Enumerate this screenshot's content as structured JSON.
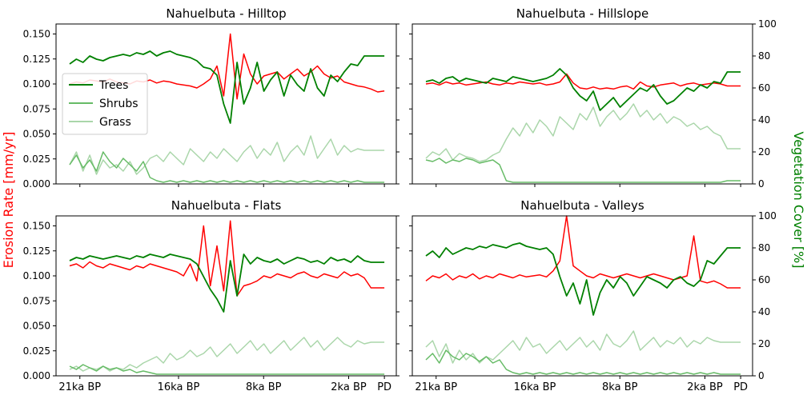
{
  "colors": {
    "erosion": "#ff0000",
    "trees": "#008000",
    "shrubs": "#66bb66",
    "grass": "#aad6aa"
  },
  "axis_labels": {
    "left": "Erosion Rate [mm/yr]",
    "right": "Vegetation Cover [%]"
  },
  "x_ticks": [
    "21ka BP",
    "16ka BP",
    "8ka BP",
    "2ka BP",
    "PD"
  ],
  "left_ticks": [
    "0.000",
    "0.025",
    "0.050",
    "0.075",
    "0.100",
    "0.125",
    "0.150"
  ],
  "right_ticks": [
    "0",
    "20",
    "40",
    "60",
    "80",
    "100"
  ],
  "legend": [
    "Trees",
    "Shrubs",
    "Grass"
  ],
  "chart_data": [
    {
      "type": "line",
      "title": "Nahuelbuta - Hilltop",
      "ylim_left": [
        0,
        0.16
      ],
      "ylim_right": [
        0,
        100
      ],
      "legend_position": "center-left",
      "series": [
        {
          "name": "",
          "axis": "left",
          "color": "#ff0000",
          "values": [
            0.1,
            0.102,
            0.101,
            0.104,
            0.103,
            0.102,
            0.105,
            0.102,
            0.101,
            0.1,
            0.103,
            0.102,
            0.104,
            0.101,
            0.103,
            0.102,
            0.1,
            0.099,
            0.098,
            0.096,
            0.1,
            0.105,
            0.118,
            0.088,
            0.15,
            0.085,
            0.13,
            0.11,
            0.1,
            0.108,
            0.11,
            0.112,
            0.105,
            0.11,
            0.115,
            0.108,
            0.112,
            0.118,
            0.11,
            0.106,
            0.108,
            0.102,
            0.1,
            0.098,
            0.097,
            0.095,
            0.092,
            0.093
          ]
        },
        {
          "name": "Trees",
          "axis": "right",
          "color": "#008000",
          "values": [
            75,
            78,
            76,
            80,
            78,
            77,
            79,
            80,
            81,
            80,
            82,
            81,
            83,
            80,
            82,
            83,
            81,
            80,
            79,
            77,
            73,
            72,
            68,
            50,
            38,
            76,
            50,
            60,
            76,
            58,
            65,
            70,
            55,
            68,
            62,
            58,
            72,
            60,
            55,
            68,
            64,
            70,
            75,
            74,
            80,
            80,
            80,
            80
          ]
        },
        {
          "name": "Shrubs",
          "axis": "right",
          "color": "#66bb66",
          "values": [
            12,
            18,
            10,
            15,
            8,
            20,
            14,
            10,
            16,
            12,
            8,
            14,
            4,
            2,
            1,
            2,
            1,
            2,
            1,
            2,
            1,
            2,
            1,
            2,
            1,
            2,
            1,
            2,
            1,
            2,
            1,
            2,
            1,
            2,
            1,
            2,
            1,
            2,
            1,
            2,
            1,
            2,
            1,
            2,
            1,
            1,
            1,
            1
          ]
        },
        {
          "name": "Grass",
          "axis": "right",
          "color": "#aad6aa",
          "values": [
            12,
            20,
            8,
            18,
            6,
            15,
            10,
            12,
            8,
            14,
            6,
            10,
            16,
            18,
            14,
            20,
            16,
            12,
            22,
            18,
            14,
            20,
            16,
            22,
            18,
            14,
            20,
            24,
            16,
            22,
            18,
            26,
            14,
            20,
            24,
            18,
            30,
            16,
            22,
            28,
            18,
            24,
            20,
            22,
            21,
            21,
            21,
            21
          ]
        }
      ]
    },
    {
      "type": "line",
      "title": "Nahuelbuta - Hillslope",
      "ylim_left": [
        0,
        0.16
      ],
      "ylim_right": [
        0,
        100
      ],
      "series": [
        {
          "name": "",
          "axis": "left",
          "color": "#ff0000",
          "values": [
            0.1,
            0.101,
            0.099,
            0.102,
            0.1,
            0.101,
            0.099,
            0.1,
            0.101,
            0.102,
            0.1,
            0.099,
            0.101,
            0.1,
            0.102,
            0.101,
            0.1,
            0.101,
            0.099,
            0.1,
            0.102,
            0.11,
            0.101,
            0.096,
            0.095,
            0.097,
            0.095,
            0.096,
            0.095,
            0.097,
            0.098,
            0.095,
            0.102,
            0.098,
            0.097,
            0.099,
            0.1,
            0.101,
            0.098,
            0.1,
            0.101,
            0.099,
            0.1,
            0.101,
            0.1,
            0.098,
            0.098,
            0.098
          ]
        },
        {
          "name": "",
          "axis": "right",
          "color": "#008000",
          "values": [
            64,
            65,
            63,
            66,
            67,
            64,
            66,
            65,
            64,
            63,
            66,
            65,
            64,
            67,
            66,
            65,
            64,
            65,
            66,
            68,
            72,
            68,
            60,
            55,
            52,
            58,
            46,
            50,
            54,
            48,
            52,
            56,
            60,
            58,
            62,
            55,
            50,
            52,
            56,
            60,
            58,
            62,
            60,
            64,
            63,
            70,
            70,
            70
          ]
        },
        {
          "name": "",
          "axis": "right",
          "color": "#66bb66",
          "values": [
            15,
            14,
            16,
            13,
            15,
            14,
            16,
            15,
            13,
            14,
            15,
            12,
            2,
            1,
            1,
            1,
            1,
            1,
            1,
            1,
            1,
            1,
            1,
            1,
            1,
            1,
            1,
            1,
            1,
            1,
            1,
            1,
            1,
            1,
            1,
            1,
            1,
            1,
            1,
            1,
            1,
            1,
            1,
            1,
            1,
            2,
            2,
            2
          ]
        },
        {
          "name": "",
          "axis": "right",
          "color": "#aad6aa",
          "values": [
            16,
            20,
            18,
            22,
            15,
            19,
            17,
            16,
            14,
            15,
            18,
            20,
            28,
            35,
            30,
            38,
            32,
            40,
            36,
            30,
            42,
            38,
            34,
            44,
            40,
            48,
            36,
            42,
            46,
            40,
            44,
            50,
            42,
            46,
            40,
            44,
            38,
            42,
            40,
            36,
            38,
            34,
            36,
            32,
            30,
            22,
            22,
            22
          ]
        }
      ]
    },
    {
      "type": "line",
      "title": "Nahuelbuta - Flats",
      "ylim_left": [
        0,
        0.16
      ],
      "ylim_right": [
        0,
        100
      ],
      "series": [
        {
          "name": "",
          "axis": "left",
          "color": "#ff0000",
          "values": [
            0.11,
            0.112,
            0.108,
            0.114,
            0.11,
            0.108,
            0.112,
            0.11,
            0.108,
            0.106,
            0.11,
            0.108,
            0.112,
            0.11,
            0.108,
            0.106,
            0.104,
            0.1,
            0.112,
            0.095,
            0.15,
            0.09,
            0.13,
            0.085,
            0.155,
            0.08,
            0.09,
            0.092,
            0.095,
            0.1,
            0.098,
            0.102,
            0.1,
            0.098,
            0.102,
            0.104,
            0.1,
            0.098,
            0.102,
            0.1,
            0.098,
            0.104,
            0.1,
            0.102,
            0.098,
            0.088,
            0.088,
            0.088
          ]
        },
        {
          "name": "",
          "axis": "right",
          "color": "#008000",
          "values": [
            72,
            74,
            73,
            75,
            74,
            73,
            74,
            75,
            74,
            73,
            75,
            74,
            76,
            75,
            74,
            76,
            75,
            74,
            73,
            70,
            62,
            54,
            48,
            40,
            72,
            50,
            76,
            70,
            74,
            72,
            71,
            73,
            70,
            72,
            74,
            73,
            71,
            72,
            70,
            74,
            72,
            73,
            71,
            75,
            72,
            71,
            71,
            71
          ]
        },
        {
          "name": "",
          "axis": "right",
          "color": "#66bb66",
          "values": [
            6,
            4,
            7,
            5,
            3,
            6,
            4,
            5,
            3,
            4,
            2,
            3,
            2,
            1,
            1,
            1,
            1,
            1,
            1,
            1,
            1,
            1,
            1,
            1,
            1,
            1,
            1,
            1,
            1,
            1,
            1,
            1,
            1,
            1,
            1,
            1,
            1,
            1,
            1,
            1,
            1,
            1,
            1,
            1,
            1,
            1,
            1,
            1
          ]
        },
        {
          "name": "",
          "axis": "right",
          "color": "#aad6aa",
          "values": [
            4,
            6,
            3,
            5,
            4,
            6,
            3,
            5,
            4,
            7,
            5,
            8,
            10,
            12,
            8,
            14,
            10,
            12,
            16,
            12,
            14,
            18,
            12,
            16,
            20,
            14,
            18,
            22,
            16,
            20,
            14,
            18,
            22,
            16,
            20,
            24,
            18,
            22,
            16,
            20,
            24,
            20,
            18,
            22,
            20,
            21,
            21,
            21
          ]
        }
      ]
    },
    {
      "type": "line",
      "title": "Nahuelbuta - Valleys",
      "ylim_left": [
        0,
        0.16
      ],
      "ylim_right": [
        0,
        100
      ],
      "series": [
        {
          "name": "",
          "axis": "left",
          "color": "#ff0000",
          "values": [
            0.095,
            0.1,
            0.098,
            0.102,
            0.096,
            0.1,
            0.098,
            0.102,
            0.097,
            0.1,
            0.098,
            0.102,
            0.1,
            0.098,
            0.101,
            0.099,
            0.1,
            0.101,
            0.099,
            0.105,
            0.115,
            0.16,
            0.11,
            0.105,
            0.1,
            0.098,
            0.102,
            0.1,
            0.098,
            0.1,
            0.102,
            0.1,
            0.098,
            0.1,
            0.102,
            0.1,
            0.098,
            0.096,
            0.098,
            0.1,
            0.14,
            0.095,
            0.093,
            0.095,
            0.092,
            0.088,
            0.088,
            0.088
          ]
        },
        {
          "name": "",
          "axis": "right",
          "color": "#008000",
          "values": [
            75,
            78,
            74,
            80,
            76,
            78,
            80,
            79,
            81,
            80,
            82,
            81,
            80,
            82,
            83,
            81,
            80,
            79,
            80,
            76,
            62,
            50,
            58,
            45,
            60,
            38,
            52,
            60,
            55,
            62,
            58,
            50,
            56,
            62,
            60,
            58,
            55,
            60,
            62,
            58,
            56,
            60,
            72,
            70,
            75,
            80,
            80,
            80
          ]
        },
        {
          "name": "",
          "axis": "right",
          "color": "#66bb66",
          "values": [
            10,
            14,
            8,
            16,
            12,
            10,
            14,
            12,
            9,
            12,
            8,
            10,
            4,
            2,
            1,
            2,
            1,
            2,
            1,
            2,
            1,
            2,
            1,
            2,
            1,
            2,
            1,
            2,
            1,
            2,
            1,
            2,
            1,
            2,
            1,
            2,
            1,
            2,
            1,
            2,
            1,
            2,
            1,
            2,
            1,
            1,
            1,
            1
          ]
        },
        {
          "name": "",
          "axis": "right",
          "color": "#aad6aa",
          "values": [
            18,
            22,
            12,
            20,
            8,
            16,
            10,
            14,
            8,
            12,
            10,
            14,
            18,
            22,
            16,
            24,
            18,
            20,
            14,
            18,
            22,
            16,
            20,
            24,
            18,
            22,
            16,
            26,
            20,
            18,
            22,
            28,
            16,
            20,
            24,
            18,
            22,
            20,
            24,
            18,
            22,
            20,
            24,
            22,
            21,
            21,
            21,
            21
          ]
        }
      ]
    }
  ]
}
